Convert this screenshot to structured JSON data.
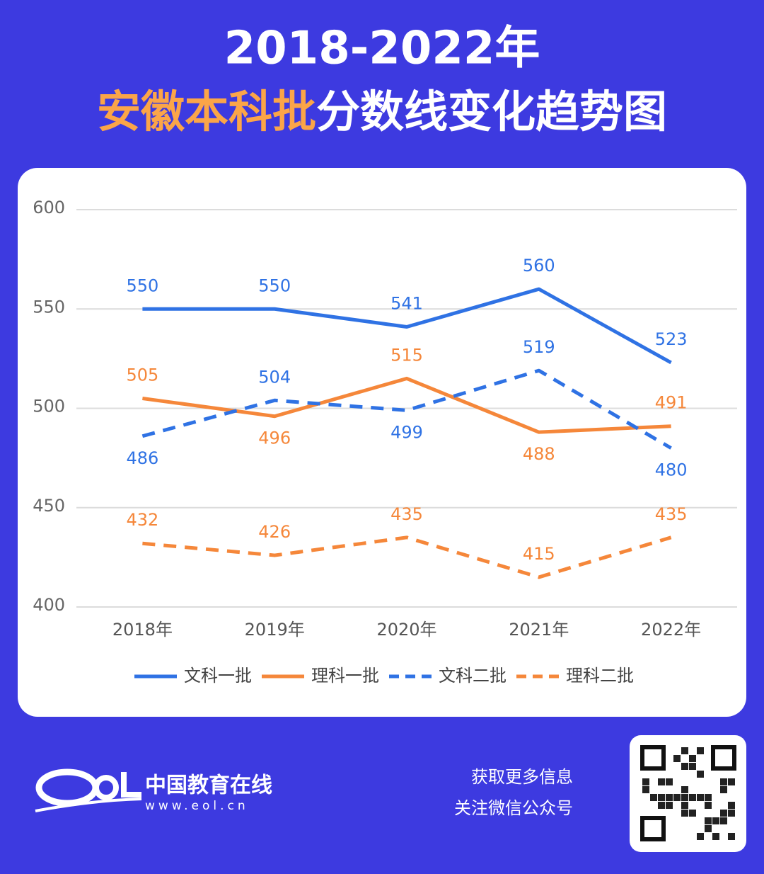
{
  "header": {
    "line1": "2018-2022年",
    "highlight": "安徽本科批",
    "rest": "分数线变化趋势图"
  },
  "chart_data": {
    "type": "line",
    "categories": [
      "2018年",
      "2019年",
      "2020年",
      "2021年",
      "2022年"
    ],
    "series": [
      {
        "name": "文科一批",
        "color": "#2f72e4",
        "dashed": false,
        "values": [
          550,
          550,
          541,
          560,
          523
        ]
      },
      {
        "name": "理科一批",
        "color": "#f5873a",
        "dashed": false,
        "values": [
          505,
          496,
          515,
          488,
          491
        ]
      },
      {
        "name": "文科二批",
        "color": "#2f72e4",
        "dashed": true,
        "values": [
          486,
          504,
          499,
          519,
          480
        ]
      },
      {
        "name": "理科二批",
        "color": "#f5873a",
        "dashed": true,
        "values": [
          432,
          426,
          435,
          415,
          435
        ]
      }
    ],
    "ylim": [
      400,
      600
    ],
    "yticks": [
      400,
      450,
      500,
      550,
      600
    ],
    "grid": true,
    "legend": "bottom"
  },
  "footer": {
    "brand": "中国教育在线",
    "url": "www.eol.cn",
    "lines": [
      "获取更多信息",
      "关注微信公众号"
    ]
  }
}
